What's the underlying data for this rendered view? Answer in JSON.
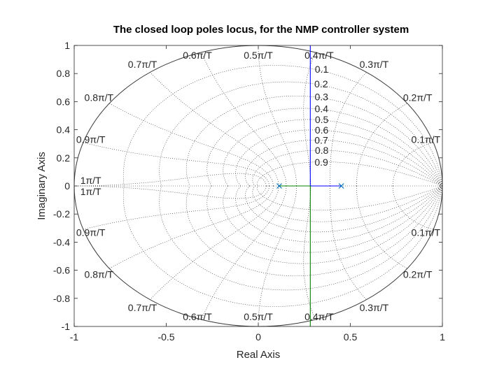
{
  "chart_data": {
    "type": "root-locus",
    "title": "The closed loop poles locus, for the NMP controller system",
    "xlabel": "Real Axis",
    "ylabel": "Imaginary Axis",
    "xlim": [
      -1,
      1
    ],
    "ylim": [
      -1,
      1
    ],
    "xticks": [
      -1,
      -0.5,
      0,
      0.5,
      1
    ],
    "xtick_labels": [
      "-1",
      "-0.5",
      "0",
      "0.5",
      "1"
    ],
    "yticks": [
      -1,
      -0.8,
      -0.6,
      -0.4,
      -0.2,
      0,
      0.2,
      0.4,
      0.6,
      0.8,
      1
    ],
    "ytick_labels": [
      "-1",
      "-0.8",
      "-0.6",
      "-0.4",
      "-0.2",
      "0",
      "0.2",
      "0.4",
      "0.6",
      "0.8",
      "1"
    ],
    "grid": "zgrid",
    "damping_ratios": [
      0.1,
      0.2,
      0.3,
      0.4,
      0.5,
      0.6,
      0.7,
      0.8,
      0.9
    ],
    "damping_labels": [
      "0.1",
      "0.2",
      "0.3",
      "0.4",
      "0.5",
      "0.6",
      "0.7",
      "0.8",
      "0.9"
    ],
    "natural_frequencies_pi_over_T": [
      0.1,
      0.2,
      0.3,
      0.4,
      0.5,
      0.6,
      0.7,
      0.8,
      0.9,
      1.0
    ],
    "wn_labels": [
      "0.1π/T",
      "0.2π/T",
      "0.3π/T",
      "0.4π/T",
      "0.5π/T",
      "0.6π/T",
      "0.7π/T",
      "0.8π/T",
      "0.9π/T",
      "1π/T"
    ],
    "open_loop_poles": [
      {
        "re": 0.114,
        "im": 0
      },
      {
        "re": 0.451,
        "im": 0
      }
    ],
    "series": [
      {
        "name": "branch-1",
        "color": "#0000ff",
        "points": [
          [
            0.114,
            0
          ],
          [
            0.2825,
            0
          ],
          [
            0.2825,
            1.0
          ]
        ]
      },
      {
        "name": "branch-2",
        "color": "#0000ff",
        "points": [
          [
            0.451,
            0
          ],
          [
            0.2825,
            0
          ]
        ]
      },
      {
        "name": "branch-3",
        "color": "#008000",
        "points": [
          [
            0.114,
            0
          ],
          [
            0.2825,
            0
          ],
          [
            0.2825,
            -1.0
          ]
        ]
      }
    ],
    "colors": {
      "grid": "#262626",
      "unit_circle": "#3a3a3a",
      "axes": "#262626",
      "pole_marker": "#0072bd"
    }
  }
}
